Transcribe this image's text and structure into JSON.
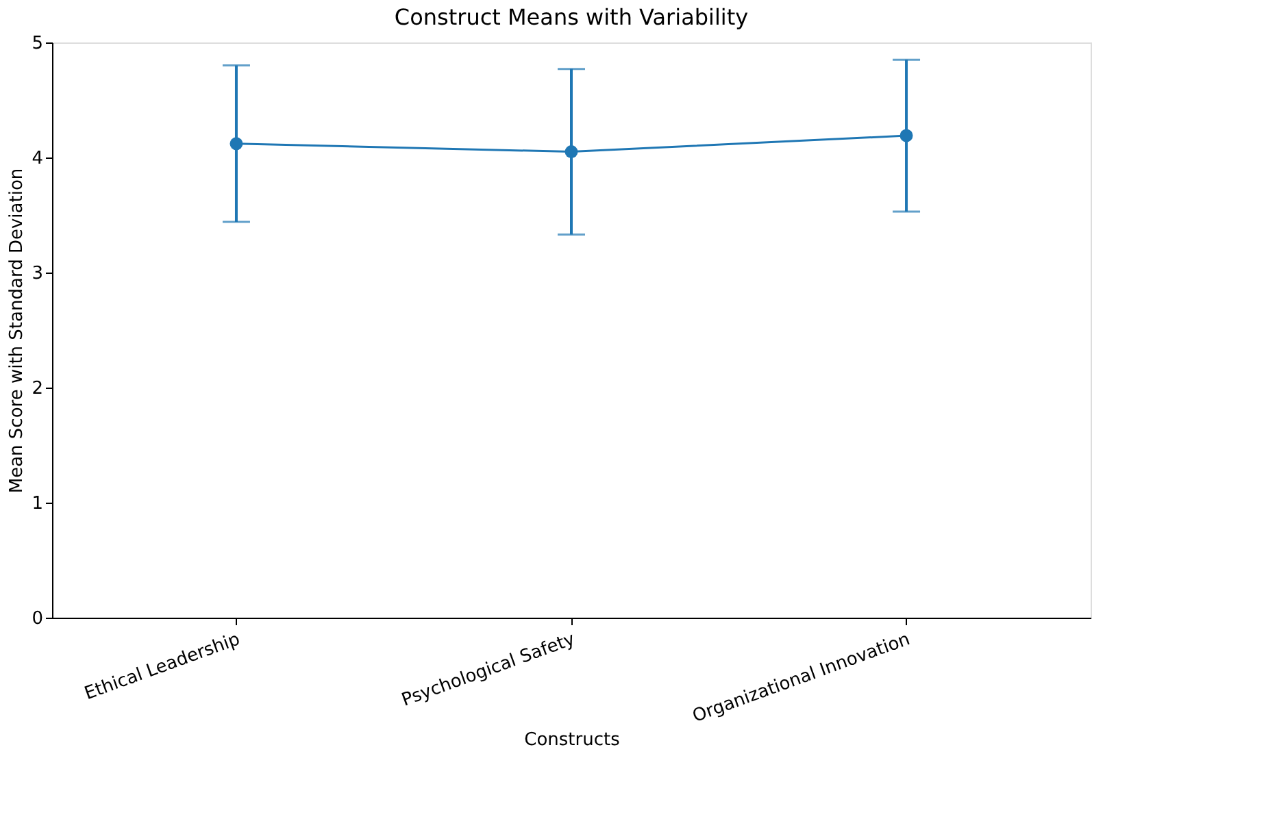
{
  "chart_data": {
    "type": "line",
    "title": "Construct Means with Variability",
    "xlabel": "Constructs",
    "ylabel": "Mean Score with Standard Deviation",
    "categories": [
      "Ethical Leadership",
      "Psychological Safety",
      "Organizational Innovation"
    ],
    "series": [
      {
        "color": "#1f77b4",
        "values": [
          4.12,
          4.05,
          4.19
        ],
        "errors": [
          0.68,
          0.72,
          0.66
        ]
      }
    ],
    "ylim": [
      0,
      5
    ],
    "yticks": [
      0,
      1,
      2,
      3,
      4,
      5
    ],
    "marker": "circle",
    "line_style": "solid",
    "grid": false
  }
}
